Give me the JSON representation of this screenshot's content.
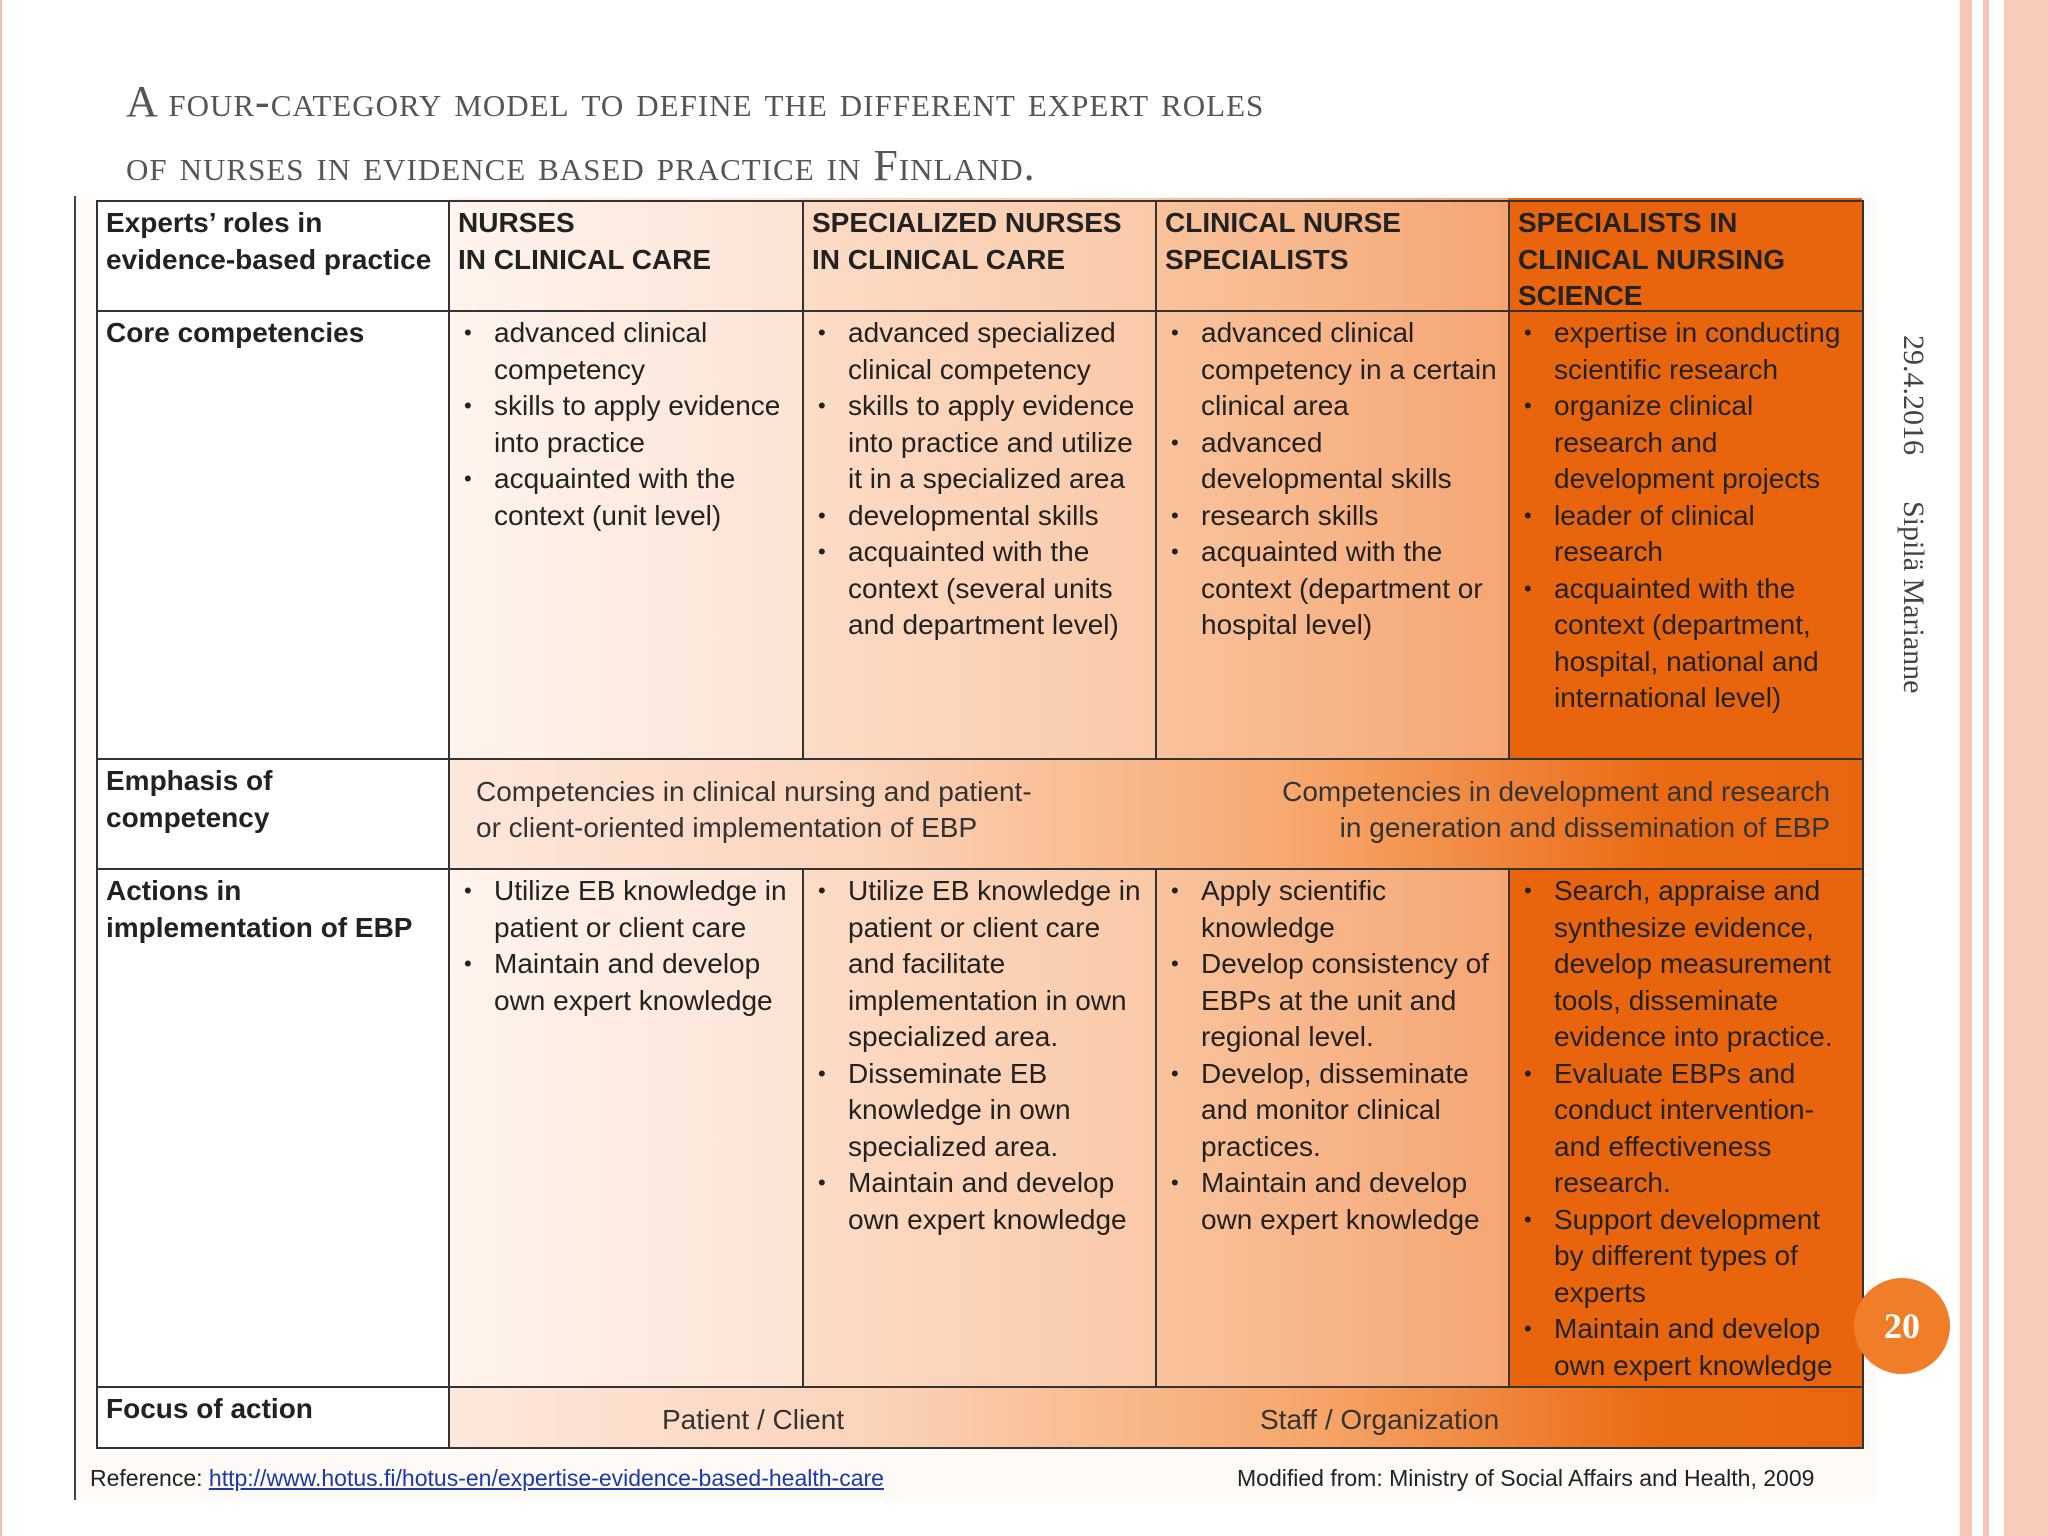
{
  "slide": {
    "title_line1": "A four-category model to define the different expert roles",
    "title_line2": "of nurses in evidence based practice in Finland.",
    "date": "29.4.2016",
    "author": "Sipilä Marianne",
    "page_number": "20"
  },
  "table": {
    "row_header_label": "Experts’ roles in evidence-based practice",
    "columns": [
      {
        "heading_l1": "NURSES",
        "heading_l2": "IN CLINICAL CARE",
        "heading_l3": ""
      },
      {
        "heading_l1": "SPECIALIZED NURSES",
        "heading_l2": "IN CLINICAL CARE",
        "heading_l3": ""
      },
      {
        "heading_l1": "CLINICAL NURSE",
        "heading_l2": "SPECIALISTS",
        "heading_l3": ""
      },
      {
        "heading_l1": "SPECIALISTS IN",
        "heading_l2": "CLINICAL NURSING",
        "heading_l3": "SCIENCE"
      }
    ],
    "rows": {
      "core_label": "Core competencies",
      "core": [
        [
          "advanced clinical competency",
          "skills to apply evidence into practice",
          "acquainted with the context (unit level)"
        ],
        [
          "advanced specialized clinical competency",
          "skills to apply evidence into practice and utilize it in a specialized area",
          "developmental skills",
          "acquainted with the context (several units and department level)"
        ],
        [
          "advanced clinical competency in a certain clinical area",
          "advanced developmental skills",
          "research skills",
          "acquainted with the context (department or hospital level)"
        ],
        [
          "expertise in conducting scientific research",
          "organize clinical research and development projects",
          "leader of clinical research",
          "acquainted with the context (department, hospital, national and international level)"
        ]
      ],
      "emphasis_label": "Emphasis of competency",
      "emphasis_left_l1": "Competencies in clinical nursing and patient-",
      "emphasis_left_l2": "or client-oriented implementation of EBP",
      "emphasis_right_l1": "Competencies in development and research",
      "emphasis_right_l2": "in generation and dissemination of EBP",
      "actions_label": "Actions in implementation of EBP",
      "actions": [
        [
          "Utilize EB knowledge in patient or client care",
          "Maintain and develop own expert knowledge"
        ],
        [
          "Utilize EB knowledge in patient or client care and facilitate implementation in own specialized area.",
          "Disseminate EB knowledge in own specialized area.",
          "Maintain and develop own expert knowledge"
        ],
        [
          "Apply scientific knowledge",
          "Develop consistency of EBPs at the unit and regional level.",
          "Develop, disseminate and monitor clinical practices.",
          "Maintain and develop own expert knowledge"
        ],
        [
          "Search, appraise and synthesize evidence, develop measurement tools, disseminate evidence into practice.",
          "Evaluate EBPs and conduct intervention- and effectiveness research.",
          "Support development by different types of experts",
          "Maintain and develop own expert knowledge"
        ]
      ],
      "focus_label": "Focus of action",
      "focus_left": "Patient / Client",
      "focus_right": "Staff / Organization"
    }
  },
  "reference": {
    "label": "Reference:",
    "url": "http://www.hotus.fi/hotus-en/expertise-evidence-based-health-care",
    "modified": "Modified from: Ministry of Social Affairs and Health, 2009"
  },
  "colors": {
    "col1": "#fde9de",
    "col2": "#fbd5bd",
    "col3": "#f8b98c",
    "col4": "#e8650e",
    "accent": "#f07e28"
  }
}
